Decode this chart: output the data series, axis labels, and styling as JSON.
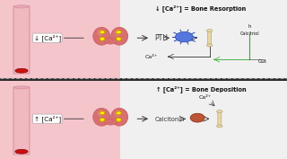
{
  "bg_color": "#2a2a2a",
  "panel_bg_left": "#f5c5cc",
  "panel_bg_right": "#f0f0f0",
  "tube_color": "#f0b8c0",
  "tube_edge": "#d89098",
  "red_oval": "#cc1111",
  "thyroid_base": "#c86060",
  "thyroid_mid": "#d87070",
  "thyroid_light": "#e89898",
  "dot_fill": "#ffee00",
  "dot_edge": "#cc9900",
  "bone_fill": "#e8d8a8",
  "bone_edge": "#b8a878",
  "osteoclast_fill": "#5577dd",
  "osteoclast_edge": "#2244aa",
  "osteoblast_fill": "#bb5533",
  "osteoblast_edge": "#882211",
  "arrow_col": "#333333",
  "text_col": "#111111",
  "green_col": "#33aa33",
  "sep_col": "#999999",
  "title1": "↓ [Ca²⁺] = Bone Resorption",
  "title2": "↑ [Ca²⁺] = Bone Deposition",
  "lbl1": "↓ [Ca²⁺]",
  "lbl2": "↑ [Ca²⁺]",
  "pth_txt": "PTH",
  "calc_txt": "Calcitonin",
  "ca2_txt": "Ca²⁺",
  "gut_txt": "Gut",
  "calcitriol_txt": "h\nCalcitriol"
}
